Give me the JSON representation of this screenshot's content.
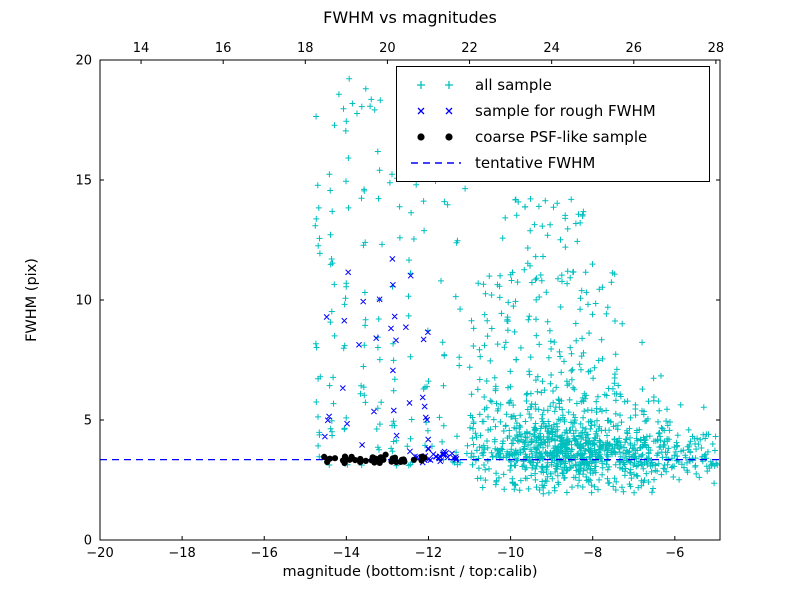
{
  "figure": {
    "title": "FWHM vs magnitudes",
    "xlabel": "magnitude (bottom:isnt / top:calib)",
    "ylabel": "FWHM (pix)",
    "background": "#ffffff",
    "axis_color": "#000000"
  },
  "legend": {
    "items": [
      {
        "label": "all sample",
        "marker": "plus",
        "color": "#00bfbf"
      },
      {
        "label": "sample for rough FWHM",
        "marker": "x",
        "color": "#0000ff"
      },
      {
        "label": "coarse PSF-like sample",
        "marker": "dot",
        "color": "#000000"
      },
      {
        "label": "tentative FWHM",
        "marker": "dashed-line",
        "color": "#0000ff"
      }
    ]
  },
  "chart_data": {
    "type": "scatter",
    "title": "FWHM vs magnitudes",
    "xlabel": "magnitude (bottom:isnt / top:calib)",
    "ylabel": "FWHM (pix)",
    "xlim": [
      -20,
      -4.9
    ],
    "top_xlim": [
      13.0,
      28.1
    ],
    "ylim": [
      0,
      20
    ],
    "xticks_bottom": [
      -20,
      -18,
      -16,
      -14,
      -12,
      -10,
      -8,
      -6
    ],
    "xticks_top": [
      14,
      16,
      18,
      20,
      22,
      24,
      26,
      28
    ],
    "yticks": [
      0,
      5,
      10,
      15,
      20
    ],
    "grid": false,
    "legend_position": "upper right",
    "tentative_fwhm_y": 3.35,
    "seed": 987123,
    "series": [
      {
        "name": "all sample",
        "marker": "+",
        "color": "#00bfbf",
        "draw_order": 1,
        "clusters": [
          {
            "kind": "gauss",
            "n": 520,
            "mx": -8.8,
            "sx": 1.05,
            "my": 3.7,
            "sy": 0.5,
            "ymin": 2.3
          },
          {
            "kind": "gauss",
            "n": 330,
            "mx": -8.5,
            "sx": 1.25,
            "my": 4.7,
            "sy": 1.25,
            "ymin": 2.1
          },
          {
            "kind": "uniform",
            "n": 130,
            "x0": -11.0,
            "x1": -7.2,
            "y0": 6.0,
            "y1": 11.5
          },
          {
            "kind": "uniform",
            "n": 35,
            "x0": -10.3,
            "x1": -8.2,
            "y0": 11.5,
            "y1": 14.3
          },
          {
            "kind": "gauss",
            "n": 150,
            "mx": -6.3,
            "sx": 0.8,
            "my": 3.5,
            "sy": 0.55,
            "ymin": 1.9,
            "xmax": -4.95
          },
          {
            "kind": "uniform",
            "n": 45,
            "x0": -10.8,
            "x1": -6.2,
            "y0": 1.9,
            "y1": 2.6
          },
          {
            "kind": "columns",
            "n": 150,
            "cols": [
              -14.7,
              -14.35,
              -14.0,
              -13.6,
              -13.2,
              -12.85,
              -12.45,
              -12.05,
              -11.65,
              -11.3
            ],
            "jx": 0.07,
            "y0": 3.1,
            "y1": 19.0,
            "pow": 1.7
          },
          {
            "kind": "uniform",
            "n": 9,
            "x0": -14.6,
            "x1": -13.3,
            "y0": 17.6,
            "y1": 19.3
          },
          {
            "kind": "uniform",
            "n": 13,
            "x0": -13.0,
            "x1": -11.1,
            "y0": 12.3,
            "y1": 16.2
          },
          {
            "kind": "uniform",
            "n": 16,
            "x0": -5.7,
            "x1": -4.98,
            "y0": 2.9,
            "y1": 4.6
          }
        ]
      },
      {
        "name": "sample for rough FWHM",
        "marker": "x",
        "color": "#0000ff",
        "draw_order": 3,
        "clusters": [
          {
            "kind": "columns",
            "n": 34,
            "cols": [
              -14.45,
              -14.05,
              -13.65,
              -13.25,
              -12.85,
              -12.45,
              -12.1
            ],
            "jx": 0.1,
            "y0": 3.3,
            "y1": 11.8,
            "pow": 1.5
          },
          {
            "kind": "gauss",
            "n": 26,
            "mx": -11.8,
            "sx": 0.3,
            "my": 3.45,
            "sy": 0.13,
            "ymin": 3.15,
            "xmin": -12.5,
            "xmax": -11.3
          }
        ]
      },
      {
        "name": "coarse PSF-like sample",
        "marker": "o",
        "color": "#000000",
        "draw_order": 4,
        "clusters": [
          {
            "kind": "gauss",
            "n": 42,
            "mx": -13.3,
            "sx": 0.75,
            "my": 3.33,
            "sy": 0.07,
            "ymin": 3.05,
            "xmin": -14.55,
            "xmax": -12.05
          }
        ]
      },
      {
        "name": "tentative FWHM",
        "marker": "dashed-line",
        "color": "#0000ff",
        "draw_order": 2,
        "y": 3.35
      }
    ]
  }
}
